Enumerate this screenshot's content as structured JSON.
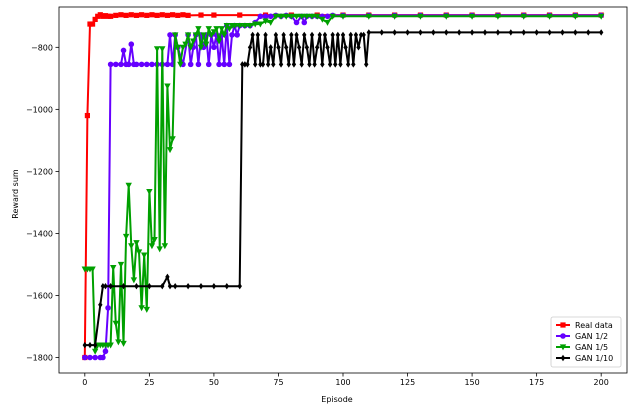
{
  "chart_data": {
    "type": "line",
    "title": "",
    "xlabel": "Episode",
    "ylabel": "Reward sum",
    "xlim": [
      -10,
      210
    ],
    "ylim": [
      -1850,
      -670
    ],
    "xticks": [
      0,
      25,
      50,
      75,
      100,
      125,
      150,
      175,
      200
    ],
    "yticks": [
      -1800,
      -1600,
      -1400,
      -1200,
      -1000,
      -800
    ],
    "grid": false,
    "legend": "bottom-right",
    "series": [
      {
        "name": "Real data",
        "color": "#ff0000",
        "marker": "square",
        "points": [
          [
            0,
            -1800
          ],
          [
            1,
            -1020
          ],
          [
            2,
            -725
          ],
          [
            3,
            -725
          ],
          [
            4,
            -710
          ],
          [
            5,
            -700
          ],
          [
            6,
            -695
          ],
          [
            7,
            -700
          ],
          [
            8,
            -698
          ],
          [
            9,
            -700
          ],
          [
            10,
            -700
          ],
          [
            12,
            -697
          ],
          [
            14,
            -695
          ],
          [
            16,
            -697
          ],
          [
            18,
            -695
          ],
          [
            20,
            -697
          ],
          [
            22,
            -695
          ],
          [
            24,
            -697
          ],
          [
            26,
            -695
          ],
          [
            28,
            -697
          ],
          [
            30,
            -695
          ],
          [
            32,
            -697
          ],
          [
            34,
            -695
          ],
          [
            36,
            -697
          ],
          [
            38,
            -695
          ],
          [
            40,
            -697
          ],
          [
            45,
            -696
          ],
          [
            50,
            -696
          ],
          [
            60,
            -696
          ],
          [
            70,
            -696
          ],
          [
            80,
            -696
          ],
          [
            90,
            -696
          ],
          [
            100,
            -696
          ],
          [
            110,
            -696
          ],
          [
            120,
            -696
          ],
          [
            130,
            -696
          ],
          [
            140,
            -696
          ],
          [
            150,
            -696
          ],
          [
            160,
            -696
          ],
          [
            170,
            -696
          ],
          [
            180,
            -696
          ],
          [
            190,
            -696
          ],
          [
            200,
            -696
          ]
        ]
      },
      {
        "name": "GAN 1/2",
        "color": "#6600ff",
        "marker": "circle",
        "points": [
          [
            0,
            -1800
          ],
          [
            2,
            -1800
          ],
          [
            4,
            -1800
          ],
          [
            6,
            -1800
          ],
          [
            7,
            -1800
          ],
          [
            8,
            -1780
          ],
          [
            9,
            -1640
          ],
          [
            10,
            -855
          ],
          [
            12,
            -855
          ],
          [
            14,
            -855
          ],
          [
            15,
            -810
          ],
          [
            16,
            -855
          ],
          [
            17,
            -855
          ],
          [
            18,
            -790
          ],
          [
            19,
            -855
          ],
          [
            20,
            -855
          ],
          [
            22,
            -855
          ],
          [
            24,
            -855
          ],
          [
            26,
            -855
          ],
          [
            28,
            -855
          ],
          [
            30,
            -855
          ],
          [
            32,
            -855
          ],
          [
            33,
            -760
          ],
          [
            34,
            -855
          ],
          [
            35,
            -760
          ],
          [
            36,
            -800
          ],
          [
            38,
            -855
          ],
          [
            40,
            -760
          ],
          [
            41,
            -855
          ],
          [
            42,
            -800
          ],
          [
            43,
            -760
          ],
          [
            44,
            -855
          ],
          [
            45,
            -760
          ],
          [
            46,
            -800
          ],
          [
            47,
            -760
          ],
          [
            48,
            -855
          ],
          [
            49,
            -760
          ],
          [
            50,
            -800
          ],
          [
            51,
            -760
          ],
          [
            52,
            -855
          ],
          [
            53,
            -760
          ],
          [
            54,
            -855
          ],
          [
            55,
            -730
          ],
          [
            56,
            -855
          ],
          [
            57,
            -760
          ],
          [
            58,
            -730
          ],
          [
            59,
            -760
          ],
          [
            60,
            -730
          ],
          [
            62,
            -730
          ],
          [
            64,
            -730
          ],
          [
            66,
            -720
          ],
          [
            68,
            -700
          ],
          [
            70,
            -700
          ],
          [
            72,
            -700
          ],
          [
            74,
            -697
          ],
          [
            76,
            -700
          ],
          [
            78,
            -697
          ],
          [
            80,
            -700
          ],
          [
            82,
            -720
          ],
          [
            84,
            -700
          ],
          [
            85,
            -720
          ],
          [
            86,
            -700
          ],
          [
            88,
            -700
          ],
          [
            90,
            -700
          ],
          [
            92,
            -700
          ],
          [
            94,
            -700
          ],
          [
            96,
            -697
          ],
          [
            100,
            -697
          ],
          [
            110,
            -697
          ],
          [
            120,
            -697
          ],
          [
            130,
            -697
          ],
          [
            140,
            -697
          ],
          [
            150,
            -697
          ],
          [
            160,
            -697
          ],
          [
            170,
            -697
          ],
          [
            180,
            -697
          ],
          [
            190,
            -697
          ],
          [
            200,
            -697
          ]
        ]
      },
      {
        "name": "GAN 1/5",
        "color": "#00a000",
        "marker": "triangle-down",
        "points": [
          [
            0,
            -1515
          ],
          [
            1,
            -1515
          ],
          [
            2,
            -1515
          ],
          [
            3,
            -1515
          ],
          [
            4,
            -1780
          ],
          [
            5,
            -1760
          ],
          [
            6,
            -1760
          ],
          [
            7,
            -1760
          ],
          [
            8,
            -1760
          ],
          [
            9,
            -1760
          ],
          [
            10,
            -1760
          ],
          [
            11,
            -1510
          ],
          [
            12,
            -1690
          ],
          [
            13,
            -1750
          ],
          [
            14,
            -1500
          ],
          [
            15,
            -1755
          ],
          [
            16,
            -1410
          ],
          [
            17,
            -1245
          ],
          [
            18,
            -1440
          ],
          [
            19,
            -1550
          ],
          [
            20,
            -1430
          ],
          [
            21,
            -1460
          ],
          [
            22,
            -1640
          ],
          [
            23,
            -1470
          ],
          [
            24,
            -1645
          ],
          [
            25,
            -1265
          ],
          [
            26,
            -1440
          ],
          [
            27,
            -1420
          ],
          [
            28,
            -805
          ],
          [
            29,
            -1450
          ],
          [
            30,
            -805
          ],
          [
            31,
            -1440
          ],
          [
            32,
            -925
          ],
          [
            33,
            -1130
          ],
          [
            34,
            -1095
          ],
          [
            35,
            -760
          ],
          [
            36,
            -800
          ],
          [
            37,
            -855
          ],
          [
            38,
            -800
          ],
          [
            39,
            -790
          ],
          [
            40,
            -760
          ],
          [
            41,
            -800
          ],
          [
            42,
            -780
          ],
          [
            43,
            -760
          ],
          [
            44,
            -740
          ],
          [
            45,
            -800
          ],
          [
            46,
            -760
          ],
          [
            47,
            -790
          ],
          [
            48,
            -740
          ],
          [
            49,
            -760
          ],
          [
            50,
            -750
          ],
          [
            51,
            -740
          ],
          [
            52,
            -780
          ],
          [
            53,
            -740
          ],
          [
            54,
            -760
          ],
          [
            55,
            -730
          ],
          [
            56,
            -740
          ],
          [
            57,
            -730
          ],
          [
            58,
            -730
          ],
          [
            60,
            -730
          ],
          [
            62,
            -730
          ],
          [
            64,
            -730
          ],
          [
            66,
            -725
          ],
          [
            68,
            -725
          ],
          [
            70,
            -715
          ],
          [
            72,
            -720
          ],
          [
            74,
            -700
          ],
          [
            76,
            -700
          ],
          [
            78,
            -700
          ],
          [
            80,
            -700
          ],
          [
            82,
            -700
          ],
          [
            84,
            -700
          ],
          [
            86,
            -700
          ],
          [
            88,
            -700
          ],
          [
            90,
            -700
          ],
          [
            92,
            -710
          ],
          [
            94,
            -720
          ],
          [
            96,
            -700
          ],
          [
            100,
            -700
          ],
          [
            110,
            -700
          ],
          [
            120,
            -700
          ],
          [
            130,
            -700
          ],
          [
            140,
            -700
          ],
          [
            150,
            -700
          ],
          [
            160,
            -700
          ],
          [
            170,
            -700
          ],
          [
            180,
            -700
          ],
          [
            190,
            -700
          ],
          [
            200,
            -700
          ]
        ]
      },
      {
        "name": "GAN 1/10",
        "color": "#000000",
        "marker": "diamond",
        "points": [
          [
            0,
            -1760
          ],
          [
            2,
            -1760
          ],
          [
            4,
            -1760
          ],
          [
            6,
            -1630
          ],
          [
            7,
            -1570
          ],
          [
            8,
            -1570
          ],
          [
            10,
            -1570
          ],
          [
            15,
            -1570
          ],
          [
            20,
            -1570
          ],
          [
            25,
            -1570
          ],
          [
            30,
            -1570
          ],
          [
            32,
            -1540
          ],
          [
            33,
            -1570
          ],
          [
            35,
            -1570
          ],
          [
            40,
            -1570
          ],
          [
            45,
            -1570
          ],
          [
            50,
            -1570
          ],
          [
            55,
            -1570
          ],
          [
            60,
            -1570
          ],
          [
            61,
            -855
          ],
          [
            62,
            -855
          ],
          [
            63,
            -855
          ],
          [
            64,
            -800
          ],
          [
            65,
            -760
          ],
          [
            66,
            -855
          ],
          [
            67,
            -760
          ],
          [
            68,
            -855
          ],
          [
            69,
            -855
          ],
          [
            70,
            -760
          ],
          [
            71,
            -855
          ],
          [
            72,
            -800
          ],
          [
            73,
            -855
          ],
          [
            74,
            -760
          ],
          [
            75,
            -800
          ],
          [
            76,
            -855
          ],
          [
            77,
            -760
          ],
          [
            78,
            -800
          ],
          [
            79,
            -855
          ],
          [
            80,
            -760
          ],
          [
            81,
            -855
          ],
          [
            82,
            -760
          ],
          [
            83,
            -800
          ],
          [
            84,
            -855
          ],
          [
            85,
            -760
          ],
          [
            86,
            -800
          ],
          [
            87,
            -855
          ],
          [
            88,
            -760
          ],
          [
            89,
            -855
          ],
          [
            90,
            -800
          ],
          [
            91,
            -760
          ],
          [
            92,
            -855
          ],
          [
            93,
            -760
          ],
          [
            94,
            -800
          ],
          [
            95,
            -855
          ],
          [
            96,
            -760
          ],
          [
            97,
            -855
          ],
          [
            98,
            -760
          ],
          [
            99,
            -855
          ],
          [
            100,
            -760
          ],
          [
            101,
            -800
          ],
          [
            102,
            -855
          ],
          [
            103,
            -760
          ],
          [
            104,
            -855
          ],
          [
            105,
            -760
          ],
          [
            106,
            -800
          ],
          [
            107,
            -760
          ],
          [
            108,
            -760
          ],
          [
            109,
            -855
          ],
          [
            110,
            -752
          ],
          [
            115,
            -752
          ],
          [
            120,
            -752
          ],
          [
            125,
            -752
          ],
          [
            130,
            -752
          ],
          [
            135,
            -752
          ],
          [
            140,
            -752
          ],
          [
            145,
            -752
          ],
          [
            150,
            -752
          ],
          [
            155,
            -752
          ],
          [
            160,
            -752
          ],
          [
            165,
            -752
          ],
          [
            170,
            -752
          ],
          [
            175,
            -752
          ],
          [
            180,
            -752
          ],
          [
            185,
            -752
          ],
          [
            190,
            -752
          ],
          [
            195,
            -752
          ],
          [
            200,
            -752
          ]
        ]
      }
    ]
  }
}
